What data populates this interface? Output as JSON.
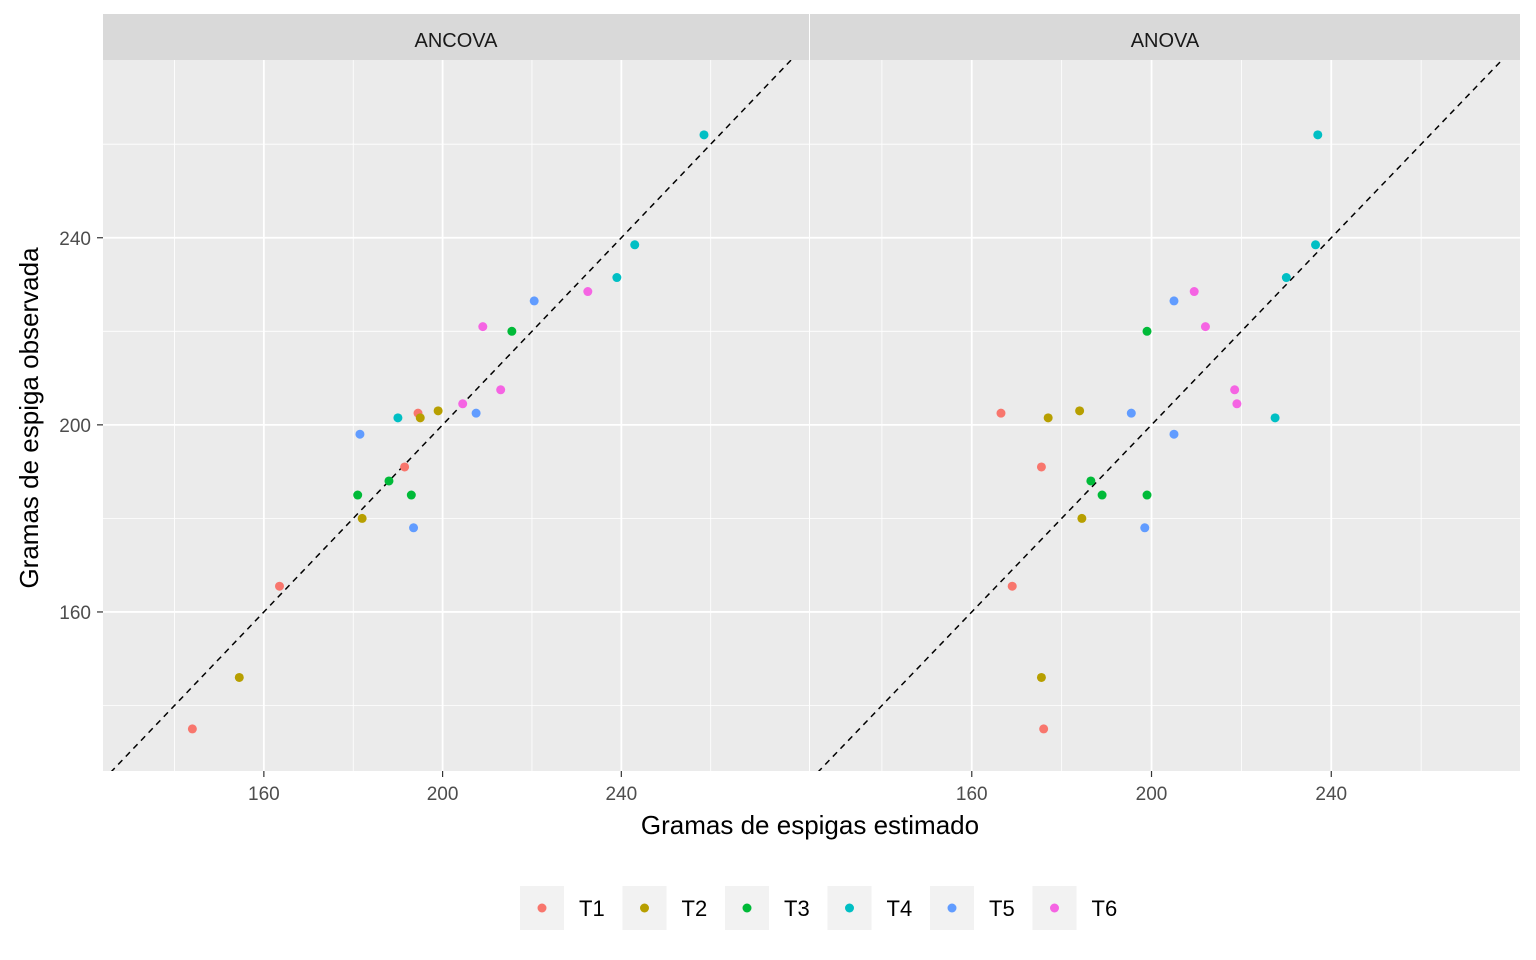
{
  "chart_data": {
    "type": "scatter",
    "xlabel": "Gramas de espigas estimado",
    "ylabel": "Gramas de espiga observada",
    "xlim": [
      124,
      282
    ],
    "ylim": [
      126,
      278
    ],
    "x_ticks": [
      160,
      200,
      240
    ],
    "y_ticks": [
      160,
      200,
      240
    ],
    "reference_line": "y = x (dashed)",
    "grid": true,
    "legend_position": "bottom",
    "series_names": [
      "T1",
      "T2",
      "T3",
      "T4",
      "T5",
      "T6"
    ],
    "colors": {
      "T1": "#F8766D",
      "T2": "#B79F00",
      "T3": "#00BA38",
      "T4": "#00BFC4",
      "T5": "#619CFF",
      "T6": "#F564E3"
    },
    "panels": [
      {
        "title": "ANCOVA",
        "points": [
          {
            "group": "T1",
            "x": 144,
            "y": 135
          },
          {
            "group": "T1",
            "x": 163.5,
            "y": 165.5
          },
          {
            "group": "T1",
            "x": 191.5,
            "y": 191
          },
          {
            "group": "T1",
            "x": 194.5,
            "y": 202.5
          },
          {
            "group": "T2",
            "x": 154.5,
            "y": 146
          },
          {
            "group": "T2",
            "x": 182,
            "y": 180
          },
          {
            "group": "T2",
            "x": 195,
            "y": 201.5
          },
          {
            "group": "T2",
            "x": 199,
            "y": 203
          },
          {
            "group": "T3",
            "x": 181,
            "y": 185
          },
          {
            "group": "T3",
            "x": 188,
            "y": 188
          },
          {
            "group": "T3",
            "x": 193,
            "y": 185
          },
          {
            "group": "T3",
            "x": 215.5,
            "y": 220
          },
          {
            "group": "T4",
            "x": 190,
            "y": 201.5
          },
          {
            "group": "T4",
            "x": 239,
            "y": 231.5
          },
          {
            "group": "T4",
            "x": 243,
            "y": 238.5
          },
          {
            "group": "T4",
            "x": 258.5,
            "y": 262
          },
          {
            "group": "T5",
            "x": 181.5,
            "y": 198
          },
          {
            "group": "T5",
            "x": 193.5,
            "y": 178
          },
          {
            "group": "T5",
            "x": 207.5,
            "y": 202.5
          },
          {
            "group": "T5",
            "x": 220.5,
            "y": 226.5
          },
          {
            "group": "T6",
            "x": 204.5,
            "y": 204.5
          },
          {
            "group": "T6",
            "x": 209,
            "y": 221
          },
          {
            "group": "T6",
            "x": 213,
            "y": 207.5
          },
          {
            "group": "T6",
            "x": 232.5,
            "y": 228.5
          }
        ]
      },
      {
        "title": "ANOVA",
        "points": [
          {
            "group": "T1",
            "x": 166.5,
            "y": 202.5
          },
          {
            "group": "T1",
            "x": 169,
            "y": 165.5
          },
          {
            "group": "T1",
            "x": 175.5,
            "y": 191
          },
          {
            "group": "T1",
            "x": 176,
            "y": 135
          },
          {
            "group": "T2",
            "x": 175.5,
            "y": 146
          },
          {
            "group": "T2",
            "x": 177,
            "y": 201.5
          },
          {
            "group": "T2",
            "x": 184,
            "y": 203
          },
          {
            "group": "T2",
            "x": 184.5,
            "y": 180
          },
          {
            "group": "T3",
            "x": 186.5,
            "y": 188
          },
          {
            "group": "T3",
            "x": 189,
            "y": 185
          },
          {
            "group": "T3",
            "x": 199,
            "y": 185
          },
          {
            "group": "T3",
            "x": 199,
            "y": 220
          },
          {
            "group": "T4",
            "x": 227.5,
            "y": 201.5
          },
          {
            "group": "T4",
            "x": 230,
            "y": 231.5
          },
          {
            "group": "T4",
            "x": 236.5,
            "y": 238.5
          },
          {
            "group": "T4",
            "x": 237,
            "y": 262
          },
          {
            "group": "T5",
            "x": 195.5,
            "y": 202.5
          },
          {
            "group": "T5",
            "x": 198.5,
            "y": 178
          },
          {
            "group": "T5",
            "x": 205,
            "y": 198
          },
          {
            "group": "T5",
            "x": 205,
            "y": 226.5
          },
          {
            "group": "T6",
            "x": 209.5,
            "y": 228.5
          },
          {
            "group": "T6",
            "x": 212,
            "y": 221
          },
          {
            "group": "T6",
            "x": 218.5,
            "y": 207.5
          },
          {
            "group": "T6",
            "x": 219,
            "y": 204.5
          }
        ]
      }
    ]
  }
}
